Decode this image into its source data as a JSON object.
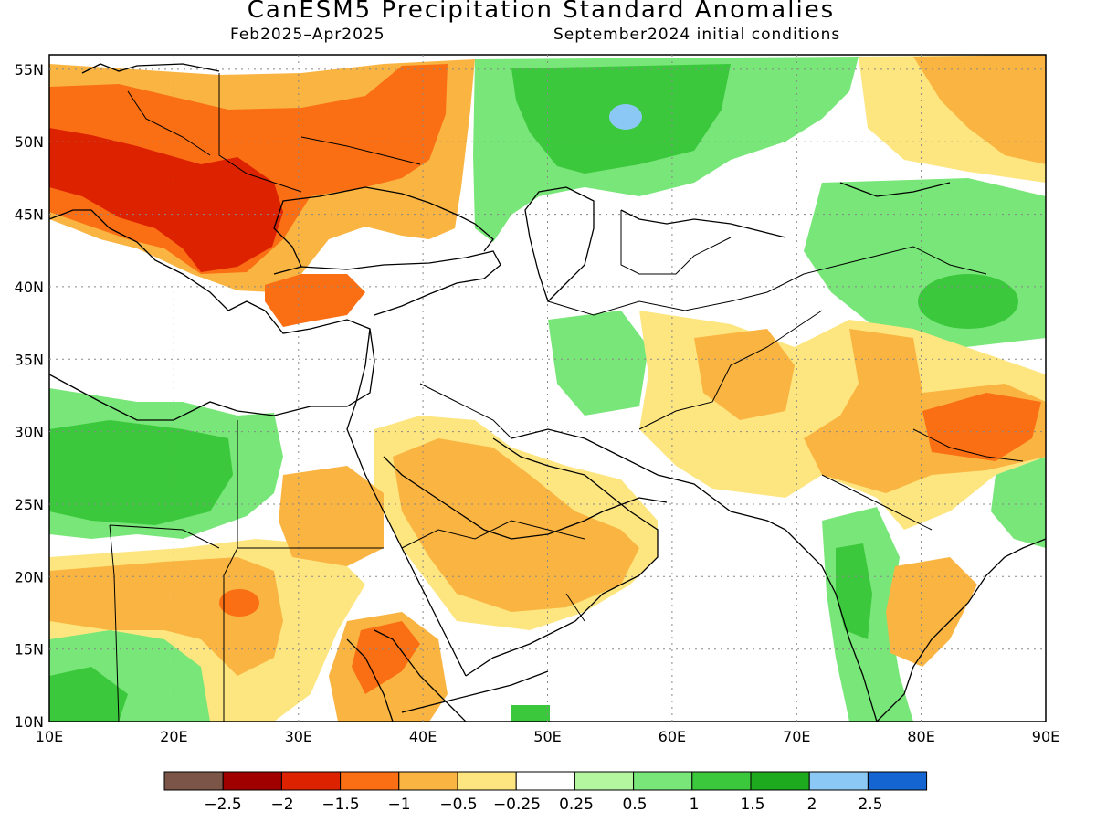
{
  "header": {
    "title": "CanESM5 Precipitation Standard Anomalies",
    "period": "Feb2025–Apr2025",
    "init": "September2024 initial conditions"
  },
  "map": {
    "lon_range": [
      10,
      90
    ],
    "lat_range": [
      10,
      56
    ],
    "lon_ticks": [
      "10E",
      "20E",
      "30E",
      "40E",
      "50E",
      "60E",
      "70E",
      "80E",
      "90E"
    ],
    "lat_ticks": [
      "10N",
      "15N",
      "20N",
      "25N",
      "30N",
      "35N",
      "40N",
      "45N",
      "50N",
      "55N"
    ],
    "grid": "dotted"
  },
  "legend": {
    "labels": [
      "−2.5",
      "−2",
      "−1.5",
      "−1",
      "−0.5",
      "−0.25",
      "0.25",
      "0.5",
      "1",
      "1.5",
      "2",
      "2.5"
    ],
    "colors": [
      "#7a5548",
      "#a00000",
      "#dd2200",
      "#fa6e14",
      "#fab441",
      "#fde680",
      "#ffffff",
      "#b4f5a0",
      "#78e678",
      "#3cc83c",
      "#1eaa1e",
      "#8cc8f5",
      "#1464d2"
    ]
  }
}
